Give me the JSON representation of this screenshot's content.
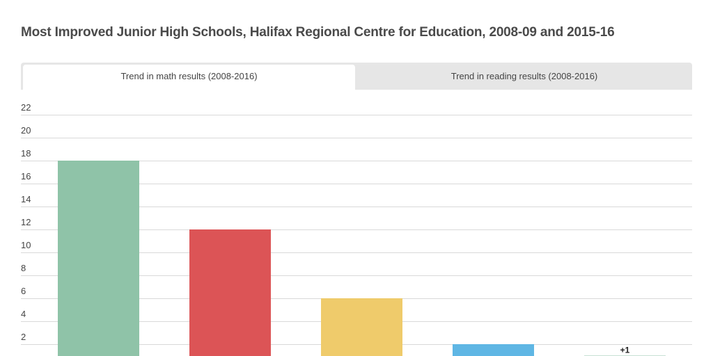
{
  "chart_data": {
    "type": "bar",
    "title": "Most Improved Junior High Schools, Halifax Regional Centre for Education, 2008-09 and 2015-16",
    "values": [
      18,
      12,
      6,
      2,
      1
    ],
    "colors": [
      "#8fc3a8",
      "#dc5456",
      "#efcb6b",
      "#5fb6e4",
      "#8fc3a8"
    ],
    "data_labels": [
      "",
      "",
      "",
      "",
      "+1"
    ],
    "yticks": [
      2,
      4,
      6,
      8,
      10,
      12,
      14,
      16,
      18,
      20,
      22
    ],
    "ylim": [
      0,
      22
    ],
    "grid": true,
    "xlabel": "",
    "ylabel": ""
  },
  "tabs": [
    {
      "label": "Trend in math results (2008-2016)",
      "active": true
    },
    {
      "label": "Trend in reading results (2008-2016)",
      "active": false
    }
  ]
}
